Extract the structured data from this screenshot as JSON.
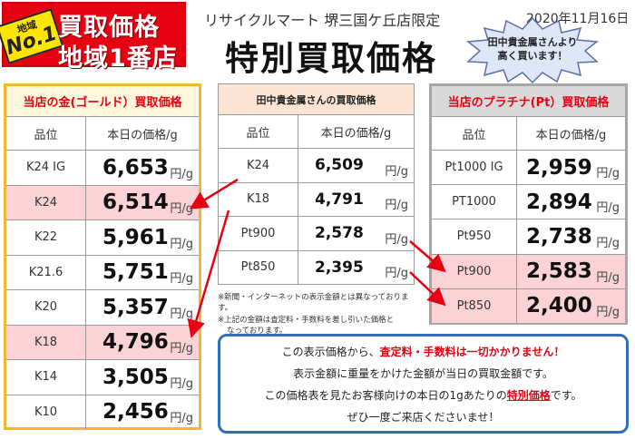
{
  "badge": {
    "area": "地域",
    "no1": "No.1",
    "line1": "買取価格",
    "line2": "地域1番店"
  },
  "header": {
    "shop": "リサイクルマート 堺三国ケ丘店限定",
    "date": "2020年11月16日",
    "title": "特別買取価格",
    "burst_line1": "田中貴金属さんより",
    "burst_line2": "高く買います！"
  },
  "gold": {
    "heading": "当店の金(ゴールド）買取価格",
    "col_grade": "品位",
    "col_price": "本日の価格/g",
    "unit": "円/g",
    "rows": [
      {
        "grade": "K24 IG",
        "price": "6,653",
        "highlight": false
      },
      {
        "grade": "K24",
        "price": "6,514",
        "highlight": true
      },
      {
        "grade": "K22",
        "price": "5,961",
        "highlight": false
      },
      {
        "grade": "K21.6",
        "price": "5,751",
        "highlight": false
      },
      {
        "grade": "K20",
        "price": "5,357",
        "highlight": false
      },
      {
        "grade": "K18",
        "price": "4,796",
        "highlight": true
      },
      {
        "grade": "K14",
        "price": "3,505",
        "highlight": false
      },
      {
        "grade": "K10",
        "price": "2,456",
        "highlight": false
      }
    ]
  },
  "tanaka": {
    "heading": "田中貴金属さんの買取価格",
    "col_grade": "品位",
    "col_price": "本日の価格/g",
    "unit": "円/g",
    "rows": [
      {
        "grade": "K24",
        "price": "6,509"
      },
      {
        "grade": "K18",
        "price": "4,791"
      },
      {
        "grade": "Pt900",
        "price": "2,578"
      },
      {
        "grade": "Pt850",
        "price": "2,395"
      }
    ]
  },
  "notes": {
    "line1": "※新聞・インターネットの表示金額とは異なっております。",
    "line2": "※上記の金額は査定料・手数料を差し引いた価格と",
    "line3": "なっております。"
  },
  "platinum": {
    "heading": "当店のプラチナ(Pt）買取価格",
    "col_grade": "品位",
    "col_price": "本日の価格/g",
    "unit": "円/g",
    "rows": [
      {
        "grade": "Pt1000 IG",
        "price": "2,959",
        "highlight": false
      },
      {
        "grade": "PT1000",
        "price": "2,894",
        "highlight": false
      },
      {
        "grade": "Pt950",
        "price": "2,738",
        "highlight": false
      },
      {
        "grade": "Pt900",
        "price": "2,583",
        "highlight": true
      },
      {
        "grade": "Pt850",
        "price": "2,400",
        "highlight": true
      }
    ]
  },
  "info": {
    "l1a": "この表示価格から、",
    "l1b": "査定料・手数料は一切かかりません！",
    "l2": "表示金額に重量をかけた金額が当日の買取金額です。",
    "l3a": "この価格表を見たお客様向けの本日の1gあたりの",
    "l3b": "特別価格",
    "l3c": "です。",
    "l4": "ぜひ一度ご来店くださいませ！"
  },
  "colors": {
    "accent_red": "#e60012",
    "gold_border": "#f2b632",
    "highlight": "#fbd3d6",
    "info_border": "#2e6fb7"
  }
}
